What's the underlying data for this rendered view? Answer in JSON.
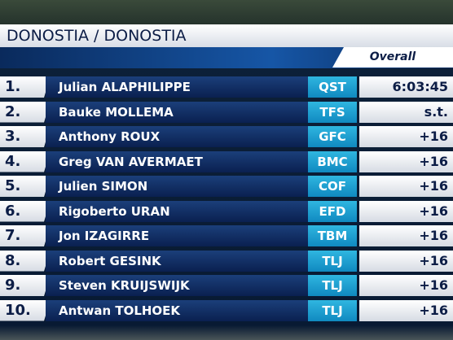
{
  "header": {
    "title": "DONOSTIA / DONOSTIA",
    "subtitle": "Overall"
  },
  "table": {
    "rows": [
      [
        "1.",
        "Julian ALAPHILIPPE",
        "QST",
        "6:03:45"
      ],
      [
        "2.",
        "Bauke MOLLEMA",
        "TFS",
        "s.t."
      ],
      [
        "3.",
        "Anthony ROUX",
        "GFC",
        "+16"
      ],
      [
        "4.",
        "Greg VAN AVERMAET",
        "BMC",
        "+16"
      ],
      [
        "5.",
        "Julien SIMON",
        "COF",
        "+16"
      ],
      [
        "6.",
        "Rigoberto URAN",
        "EFD",
        "+16"
      ],
      [
        "7.",
        "Jon IZAGIRRE",
        "TBM",
        "+16"
      ],
      [
        "8.",
        "Robert GESINK",
        "TLJ",
        "+16"
      ],
      [
        "9.",
        "Steven KRUIJSWIJK",
        "TLJ",
        "+16"
      ],
      [
        "10.",
        "Antwan TOLHOEK",
        "TLJ",
        "+16"
      ]
    ]
  }
}
